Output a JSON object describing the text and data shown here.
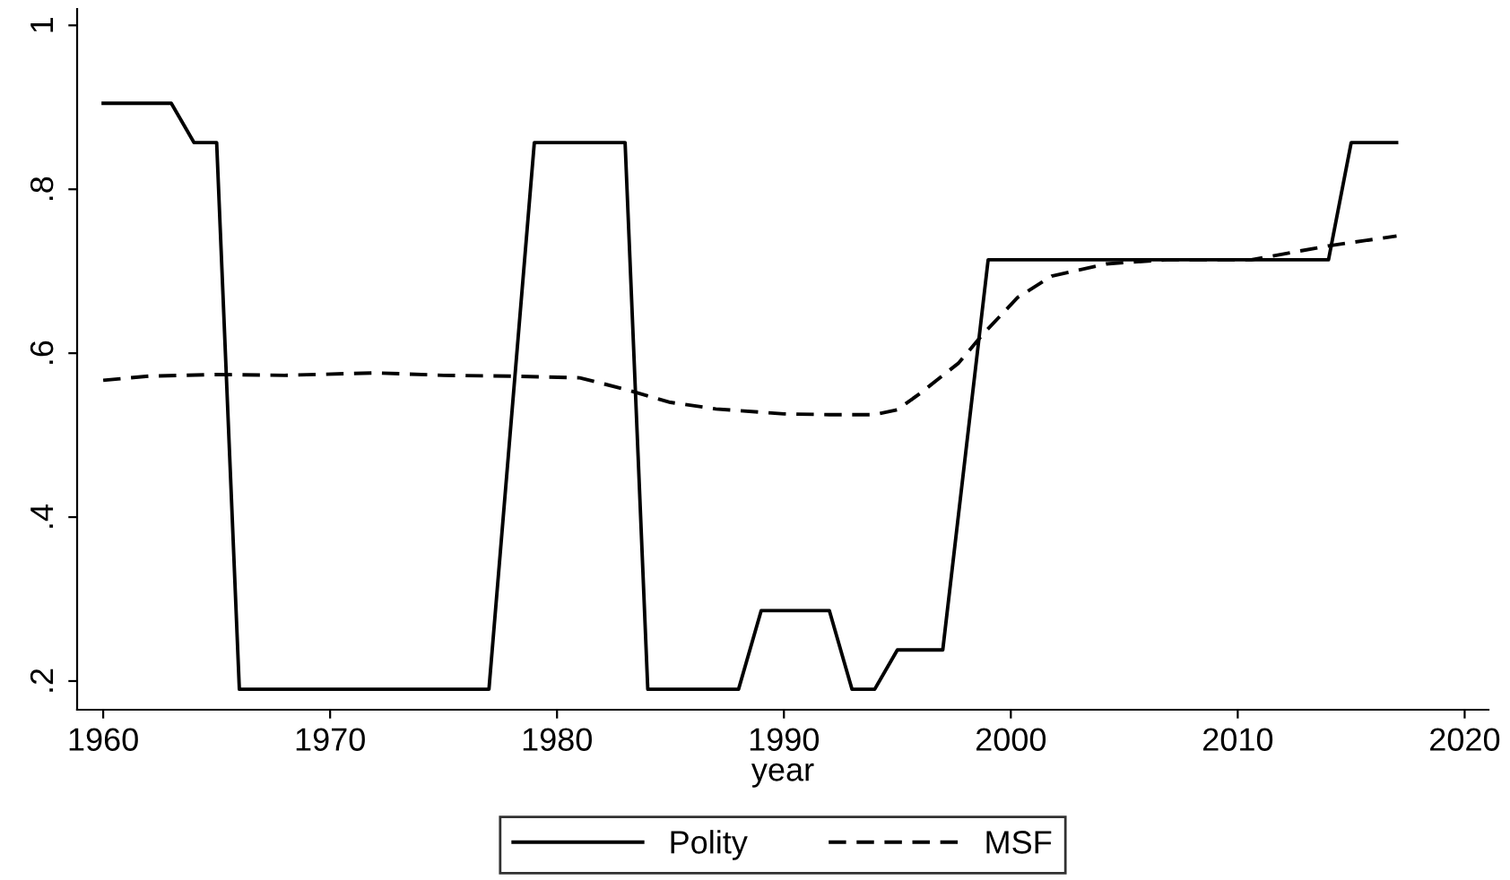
{
  "chart_data": {
    "type": "line",
    "xlabel": "year",
    "xlim": [
      1958.85,
      2021.05
    ],
    "xticks": [
      1960,
      1970,
      1980,
      1990,
      2000,
      2010,
      2020
    ],
    "ylim": [
      0.165,
      1.02
    ],
    "yticks": [
      {
        "value": 0.2,
        "label": ".2"
      },
      {
        "value": 0.4,
        "label": ".4"
      },
      {
        "value": 0.6,
        "label": ".6"
      },
      {
        "value": 0.8,
        "label": ".8"
      },
      {
        "value": 1,
        "label": "1"
      }
    ],
    "grid": false,
    "legend": "bottom",
    "marker": "none",
    "series": [
      {
        "name": "Polity",
        "color": "#000000",
        "line_style": "solid",
        "x": [
          1960,
          1963,
          1964,
          1965,
          1966,
          1977,
          1979,
          1983,
          1984,
          1988,
          1989,
          1992,
          1993,
          1994,
          1995,
          1997,
          1999,
          2014,
          2015,
          2017
        ],
        "values": [
          0.905,
          0.905,
          0.857,
          0.857,
          0.19,
          0.19,
          0.857,
          0.857,
          0.19,
          0.19,
          0.286,
          0.286,
          0.19,
          0.19,
          0.238,
          0.238,
          0.714,
          0.714,
          0.857,
          0.857
        ]
      },
      {
        "name": "MSF",
        "color": "#000000",
        "line_style": "dashed",
        "x": [
          1960,
          1962,
          1965,
          1968,
          1972,
          1975,
          1978,
          1981,
          1983,
          1985,
          1987,
          1990,
          1992,
          1994,
          1995,
          1996,
          1997.7,
          1998.7,
          2000.3,
          2001.8,
          2004.2,
          2006.9,
          2010.6,
          2014,
          2017
        ],
        "values": [
          0.567,
          0.572,
          0.574,
          0.573,
          0.576,
          0.573,
          0.572,
          0.57,
          0.556,
          0.54,
          0.532,
          0.526,
          0.525,
          0.525,
          0.531,
          0.551,
          0.588,
          0.621,
          0.668,
          0.694,
          0.709,
          0.714,
          0.714,
          0.731,
          0.743
        ]
      }
    ]
  }
}
